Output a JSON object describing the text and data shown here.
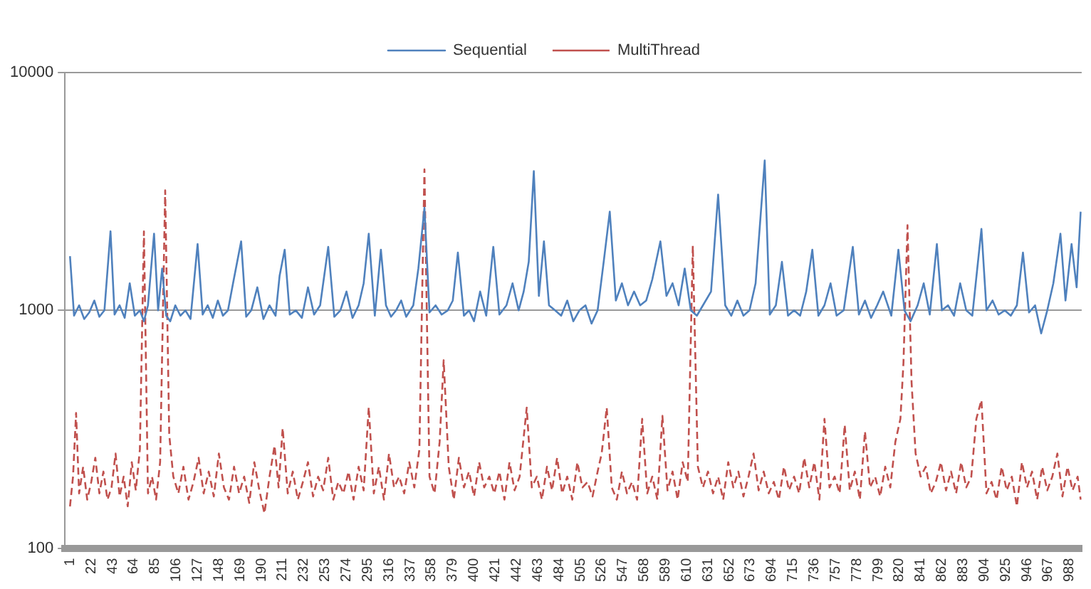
{
  "chart_data": {
    "type": "line",
    "log": "y",
    "grid": "y",
    "legend": "top",
    "marker": "none",
    "xlim": [
      -4,
      1000
    ],
    "ylim": [
      100,
      10000
    ],
    "yticks": [
      100,
      1000,
      10000
    ],
    "xticks": [
      1,
      22,
      43,
      64,
      85,
      106,
      127,
      148,
      169,
      190,
      211,
      232,
      253,
      274,
      295,
      316,
      337,
      358,
      379,
      400,
      421,
      442,
      463,
      484,
      505,
      526,
      547,
      568,
      589,
      610,
      631,
      652,
      673,
      694,
      715,
      736,
      757,
      778,
      799,
      820,
      841,
      862,
      883,
      904,
      925,
      946,
      967,
      988
    ],
    "series": [
      {
        "name": "Sequential",
        "color": "#4f81bd",
        "line_style": "solid",
        "x": [
          1,
          5,
          10,
          15,
          20,
          25,
          30,
          35,
          41,
          45,
          50,
          55,
          60,
          65,
          70,
          74,
          78,
          84,
          88,
          92,
          96,
          100,
          105,
          110,
          115,
          120,
          127,
          132,
          137,
          142,
          147,
          152,
          157,
          162,
          170,
          175,
          180,
          186,
          192,
          198,
          204,
          208,
          213,
          218,
          224,
          230,
          236,
          242,
          248,
          256,
          262,
          268,
          274,
          280,
          286,
          291,
          296,
          302,
          308,
          313,
          318,
          323,
          328,
          333,
          340,
          345,
          351,
          356,
          362,
          368,
          374,
          379,
          384,
          390,
          395,
          400,
          406,
          412,
          419,
          425,
          432,
          438,
          444,
          449,
          454,
          459,
          464,
          469,
          474,
          480,
          486,
          492,
          498,
          504,
          510,
          516,
          522,
          528,
          534,
          540,
          546,
          552,
          558,
          564,
          570,
          576,
          584,
          590,
          596,
          602,
          608,
          614,
          620,
          626,
          634,
          641,
          648,
          654,
          660,
          666,
          672,
          678,
          687,
          692,
          698,
          704,
          710,
          716,
          722,
          728,
          734,
          740,
          746,
          752,
          758,
          765,
          774,
          780,
          786,
          792,
          798,
          804,
          812,
          819,
          825,
          831,
          838,
          844,
          850,
          857,
          862,
          868,
          874,
          880,
          886,
          892,
          901,
          906,
          912,
          918,
          924,
          930,
          936,
          942,
          948,
          954,
          960,
          966,
          972,
          979,
          984,
          990,
          995,
          999
        ],
        "values": [
          1690,
          950,
          1050,
          920,
          980,
          1100,
          940,
          1000,
          2150,
          960,
          1050,
          930,
          1300,
          950,
          1000,
          900,
          1050,
          2100,
          1000,
          1500,
          950,
          900,
          1050,
          950,
          1000,
          920,
          1900,
          960,
          1050,
          930,
          1100,
          950,
          1000,
          1300,
          1950,
          940,
          1000,
          1250,
          920,
          1050,
          950,
          1400,
          1800,
          960,
          1000,
          930,
          1250,
          960,
          1050,
          1850,
          940,
          1000,
          1200,
          930,
          1050,
          1300,
          2100,
          950,
          1800,
          1050,
          940,
          1000,
          1100,
          940,
          1050,
          1500,
          2700,
          980,
          1050,
          960,
          1000,
          1100,
          1750,
          950,
          1000,
          900,
          1200,
          950,
          1850,
          960,
          1050,
          1300,
          1000,
          1200,
          1600,
          3850,
          1150,
          1950,
          1050,
          1000,
          950,
          1100,
          900,
          1000,
          1050,
          880,
          1000,
          1600,
          2600,
          1100,
          1300,
          1050,
          1200,
          1050,
          1100,
          1350,
          1950,
          1150,
          1300,
          1050,
          1500,
          1000,
          950,
          1050,
          1200,
          3070,
          1050,
          950,
          1100,
          950,
          1000,
          1300,
          4270,
          960,
          1050,
          1600,
          950,
          1000,
          950,
          1200,
          1800,
          950,
          1050,
          1300,
          950,
          1000,
          1850,
          960,
          1100,
          930,
          1050,
          1200,
          950,
          1800,
          1000,
          900,
          1050,
          1300,
          960,
          1900,
          1000,
          1050,
          950,
          1300,
          1000,
          950,
          2200,
          1000,
          1100,
          960,
          1000,
          950,
          1050,
          1750,
          980,
          1050,
          800,
          1000,
          1300,
          2100,
          1100,
          1900,
          1250,
          2600
        ]
      },
      {
        "name": "MultiThread",
        "color": "#c0504d",
        "line_style": "dashed",
        "x": [
          1,
          4,
          7,
          10,
          14,
          18,
          22,
          26,
          30,
          34,
          38,
          42,
          46,
          50,
          54,
          58,
          62,
          66,
          70,
          74,
          78,
          82,
          86,
          90,
          95,
          99,
          103,
          108,
          113,
          118,
          123,
          128,
          133,
          138,
          143,
          148,
          153,
          158,
          163,
          168,
          173,
          178,
          183,
          188,
          193,
          198,
          203,
          207,
          211,
          216,
          221,
          226,
          231,
          236,
          241,
          246,
          251,
          256,
          261,
          266,
          271,
          276,
          281,
          286,
          291,
          296,
          301,
          306,
          311,
          316,
          321,
          326,
          331,
          336,
          341,
          346,
          351,
          356,
          361,
          366,
          370,
          375,
          380,
          385,
          390,
          395,
          400,
          405,
          410,
          415,
          420,
          425,
          430,
          435,
          440,
          445,
          452,
          457,
          462,
          467,
          472,
          477,
          482,
          487,
          492,
          497,
          502,
          507,
          512,
          517,
          522,
          526,
          531,
          536,
          541,
          546,
          551,
          556,
          561,
          566,
          571,
          576,
          581,
          586,
          591,
          596,
          601,
          606,
          611,
          616,
          621,
          626,
          631,
          636,
          641,
          646,
          651,
          656,
          661,
          666,
          671,
          676,
          681,
          686,
          691,
          696,
          701,
          706,
          711,
          716,
          721,
          726,
          731,
          736,
          741,
          746,
          751,
          756,
          761,
          766,
          771,
          776,
          781,
          786,
          791,
          796,
          801,
          806,
          811,
          816,
          821,
          824,
          828,
          832,
          836,
          841,
          846,
          851,
          856,
          861,
          866,
          871,
          876,
          881,
          886,
          891,
          896,
          901,
          906,
          911,
          916,
          921,
          926,
          931,
          936,
          941,
          946,
          951,
          956,
          961,
          966,
          971,
          976,
          981,
          986,
          991,
          996,
          999
        ],
        "values": [
          150,
          200,
          370,
          170,
          220,
          160,
          190,
          240,
          170,
          210,
          160,
          180,
          250,
          165,
          200,
          150,
          230,
          175,
          260,
          2150,
          170,
          200,
          160,
          230,
          3200,
          300,
          200,
          170,
          220,
          160,
          190,
          240,
          170,
          210,
          165,
          250,
          180,
          160,
          220,
          170,
          200,
          155,
          230,
          175,
          140,
          200,
          270,
          180,
          320,
          170,
          210,
          160,
          190,
          230,
          165,
          200,
          175,
          240,
          160,
          190,
          170,
          210,
          160,
          220,
          175,
          392,
          170,
          220,
          160,
          250,
          180,
          200,
          170,
          230,
          180,
          260,
          3920,
          200,
          170,
          280,
          617,
          220,
          160,
          240,
          180,
          210,
          165,
          230,
          180,
          200,
          170,
          210,
          160,
          230,
          175,
          200,
          390,
          180,
          200,
          160,
          220,
          175,
          240,
          170,
          200,
          160,
          230,
          180,
          190,
          165,
          210,
          250,
          390,
          180,
          160,
          210,
          170,
          190,
          160,
          350,
          170,
          200,
          160,
          360,
          175,
          210,
          160,
          230,
          190,
          1870,
          220,
          180,
          210,
          170,
          200,
          160,
          230,
          180,
          210,
          165,
          200,
          250,
          175,
          210,
          170,
          190,
          160,
          220,
          175,
          200,
          170,
          240,
          180,
          230,
          160,
          350,
          180,
          200,
          170,
          330,
          175,
          210,
          160,
          310,
          180,
          200,
          165,
          220,
          180,
          280,
          350,
          600,
          2280,
          500,
          250,
          200,
          220,
          170,
          190,
          230,
          175,
          210,
          170,
          230,
          180,
          200,
          350,
          420,
          170,
          190,
          160,
          220,
          175,
          200,
          150,
          230,
          180,
          210,
          160,
          220,
          175,
          200,
          250,
          165,
          220,
          175,
          200,
          160
        ]
      }
    ]
  }
}
